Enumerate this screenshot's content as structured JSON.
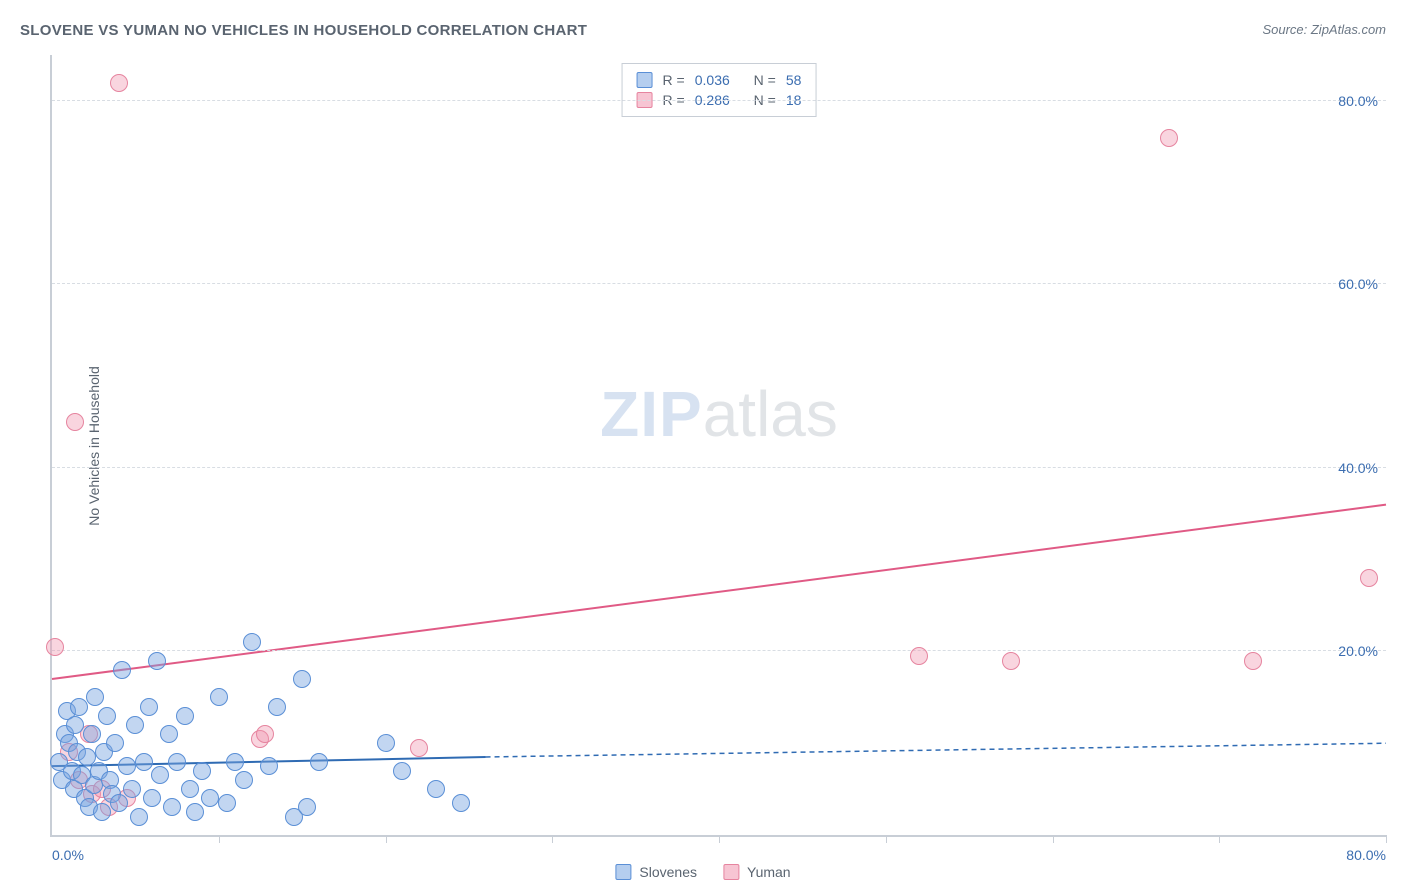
{
  "chart": {
    "type": "scatter",
    "title": "SLOVENE VS YUMAN NO VEHICLES IN HOUSEHOLD CORRELATION CHART",
    "source": "Source: ZipAtlas.com",
    "ylabel": "No Vehicles in Household",
    "xlim": [
      0,
      80
    ],
    "ylim": [
      0,
      85
    ],
    "yticks": [
      20,
      40,
      60,
      80
    ],
    "ytick_labels": [
      "20.0%",
      "40.0%",
      "60.0%",
      "80.0%"
    ],
    "xtick_left": "0.0%",
    "xtick_right": "80.0%",
    "xgrid_ticks": [
      10,
      20,
      30,
      40,
      50,
      60,
      70,
      80
    ],
    "background_color": "#ffffff",
    "grid_color": "#d8dde3",
    "axis_color": "#c8ced6",
    "title_color": "#5a6470",
    "tick_label_color": "#3b6db0",
    "watermark_zip": "ZIP",
    "watermark_atlas": "atlas",
    "legend_top": [
      {
        "swatch": "blue",
        "r_label": "R =",
        "r": "0.036",
        "n_label": "N =",
        "n": "58"
      },
      {
        "swatch": "pink",
        "r_label": "R =",
        "r": "0.286",
        "n_label": "N =",
        "n": "18"
      }
    ],
    "legend_bottom": [
      {
        "swatch": "blue",
        "label": "Slovenes"
      },
      {
        "swatch": "pink",
        "label": "Yuman"
      }
    ],
    "series": {
      "slovenes": {
        "color_fill": "rgba(120,165,225,0.45)",
        "color_stroke": "#5a8fd6",
        "marker_radius": 9,
        "trend": {
          "x1": 0,
          "y1": 7.5,
          "x2": 26,
          "y2": 8.5,
          "ext_x2": 80,
          "ext_y2": 10,
          "stroke": "#2f6bb3",
          "width": 2,
          "dash_ext": "5,4"
        },
        "points": [
          {
            "x": 0.4,
            "y": 8
          },
          {
            "x": 0.6,
            "y": 6
          },
          {
            "x": 0.8,
            "y": 11
          },
          {
            "x": 0.9,
            "y": 13.5
          },
          {
            "x": 1,
            "y": 10
          },
          {
            "x": 1.2,
            "y": 7
          },
          {
            "x": 1.3,
            "y": 5
          },
          {
            "x": 1.4,
            "y": 12
          },
          {
            "x": 1.5,
            "y": 9
          },
          {
            "x": 1.6,
            "y": 14
          },
          {
            "x": 1.8,
            "y": 6.5
          },
          {
            "x": 2,
            "y": 4
          },
          {
            "x": 2.1,
            "y": 8.5
          },
          {
            "x": 2.2,
            "y": 3
          },
          {
            "x": 2.4,
            "y": 11
          },
          {
            "x": 2.5,
            "y": 5.5
          },
          {
            "x": 2.6,
            "y": 15
          },
          {
            "x": 2.8,
            "y": 7
          },
          {
            "x": 3,
            "y": 2.5
          },
          {
            "x": 3.1,
            "y": 9
          },
          {
            "x": 3.3,
            "y": 13
          },
          {
            "x": 3.5,
            "y": 6
          },
          {
            "x": 3.6,
            "y": 4.5
          },
          {
            "x": 3.8,
            "y": 10
          },
          {
            "x": 4,
            "y": 3.5
          },
          {
            "x": 4.2,
            "y": 18
          },
          {
            "x": 4.5,
            "y": 7.5
          },
          {
            "x": 4.8,
            "y": 5
          },
          {
            "x": 5,
            "y": 12
          },
          {
            "x": 5.2,
            "y": 2
          },
          {
            "x": 5.5,
            "y": 8
          },
          {
            "x": 5.8,
            "y": 14
          },
          {
            "x": 6,
            "y": 4
          },
          {
            "x": 6.3,
            "y": 19
          },
          {
            "x": 6.5,
            "y": 6.5
          },
          {
            "x": 7,
            "y": 11
          },
          {
            "x": 7.2,
            "y": 3
          },
          {
            "x": 7.5,
            "y": 8
          },
          {
            "x": 8,
            "y": 13
          },
          {
            "x": 8.3,
            "y": 5
          },
          {
            "x": 8.6,
            "y": 2.5
          },
          {
            "x": 9,
            "y": 7
          },
          {
            "x": 9.5,
            "y": 4
          },
          {
            "x": 10,
            "y": 15
          },
          {
            "x": 10.5,
            "y": 3.5
          },
          {
            "x": 11,
            "y": 8
          },
          {
            "x": 11.5,
            "y": 6
          },
          {
            "x": 12,
            "y": 21
          },
          {
            "x": 13,
            "y": 7.5
          },
          {
            "x": 13.5,
            "y": 14
          },
          {
            "x": 14.5,
            "y": 2
          },
          {
            "x": 15,
            "y": 17
          },
          {
            "x": 15.3,
            "y": 3
          },
          {
            "x": 16,
            "y": 8
          },
          {
            "x": 20,
            "y": 10
          },
          {
            "x": 21,
            "y": 7
          },
          {
            "x": 23,
            "y": 5
          },
          {
            "x": 24.5,
            "y": 3.5
          }
        ]
      },
      "yuman": {
        "color_fill": "rgba(240,150,175,0.40)",
        "color_stroke": "#e6849f",
        "marker_radius": 9,
        "trend": {
          "x1": 0,
          "y1": 17,
          "x2": 80,
          "y2": 36,
          "stroke": "#e05a85",
          "width": 2
        },
        "points": [
          {
            "x": 2.4,
            "y": 4.5
          },
          {
            "x": 0.2,
            "y": 20.5
          },
          {
            "x": 1,
            "y": 9
          },
          {
            "x": 1.6,
            "y": 6
          },
          {
            "x": 2.2,
            "y": 11
          },
          {
            "x": 3,
            "y": 5
          },
          {
            "x": 3.4,
            "y": 3
          },
          {
            "x": 4.5,
            "y": 4
          },
          {
            "x": 1.4,
            "y": 45
          },
          {
            "x": 4,
            "y": 82
          },
          {
            "x": 12.5,
            "y": 10.5
          },
          {
            "x": 12.8,
            "y": 11
          },
          {
            "x": 22,
            "y": 9.5
          },
          {
            "x": 52,
            "y": 19.5
          },
          {
            "x": 57.5,
            "y": 19
          },
          {
            "x": 67,
            "y": 76
          },
          {
            "x": 72,
            "y": 19
          },
          {
            "x": 79,
            "y": 28
          }
        ]
      }
    }
  }
}
